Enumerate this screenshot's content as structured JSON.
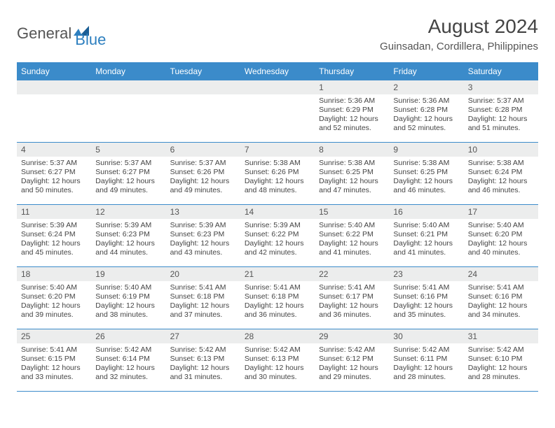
{
  "logo": {
    "text1": "General",
    "text2": "Blue"
  },
  "title": "August 2024",
  "subtitle": "Guinsadan, Cordillera, Philippines",
  "colors": {
    "header_bg": "#3b8bca",
    "header_text": "#ffffff",
    "daynum_bg": "#eceded",
    "body_text": "#444444",
    "rule": "#3b8bca",
    "logo_gray": "#555555",
    "logo_blue": "#2d7fbf"
  },
  "day_headers": [
    "Sunday",
    "Monday",
    "Tuesday",
    "Wednesday",
    "Thursday",
    "Friday",
    "Saturday"
  ],
  "weeks": [
    [
      {
        "n": "",
        "sunrise": "",
        "sunset": "",
        "daylight": ""
      },
      {
        "n": "",
        "sunrise": "",
        "sunset": "",
        "daylight": ""
      },
      {
        "n": "",
        "sunrise": "",
        "sunset": "",
        "daylight": ""
      },
      {
        "n": "",
        "sunrise": "",
        "sunset": "",
        "daylight": ""
      },
      {
        "n": "1",
        "sunrise": "Sunrise: 5:36 AM",
        "sunset": "Sunset: 6:29 PM",
        "daylight": "Daylight: 12 hours and 52 minutes."
      },
      {
        "n": "2",
        "sunrise": "Sunrise: 5:36 AM",
        "sunset": "Sunset: 6:28 PM",
        "daylight": "Daylight: 12 hours and 52 minutes."
      },
      {
        "n": "3",
        "sunrise": "Sunrise: 5:37 AM",
        "sunset": "Sunset: 6:28 PM",
        "daylight": "Daylight: 12 hours and 51 minutes."
      }
    ],
    [
      {
        "n": "4",
        "sunrise": "Sunrise: 5:37 AM",
        "sunset": "Sunset: 6:27 PM",
        "daylight": "Daylight: 12 hours and 50 minutes."
      },
      {
        "n": "5",
        "sunrise": "Sunrise: 5:37 AM",
        "sunset": "Sunset: 6:27 PM",
        "daylight": "Daylight: 12 hours and 49 minutes."
      },
      {
        "n": "6",
        "sunrise": "Sunrise: 5:37 AM",
        "sunset": "Sunset: 6:26 PM",
        "daylight": "Daylight: 12 hours and 49 minutes."
      },
      {
        "n": "7",
        "sunrise": "Sunrise: 5:38 AM",
        "sunset": "Sunset: 6:26 PM",
        "daylight": "Daylight: 12 hours and 48 minutes."
      },
      {
        "n": "8",
        "sunrise": "Sunrise: 5:38 AM",
        "sunset": "Sunset: 6:25 PM",
        "daylight": "Daylight: 12 hours and 47 minutes."
      },
      {
        "n": "9",
        "sunrise": "Sunrise: 5:38 AM",
        "sunset": "Sunset: 6:25 PM",
        "daylight": "Daylight: 12 hours and 46 minutes."
      },
      {
        "n": "10",
        "sunrise": "Sunrise: 5:38 AM",
        "sunset": "Sunset: 6:24 PM",
        "daylight": "Daylight: 12 hours and 46 minutes."
      }
    ],
    [
      {
        "n": "11",
        "sunrise": "Sunrise: 5:39 AM",
        "sunset": "Sunset: 6:24 PM",
        "daylight": "Daylight: 12 hours and 45 minutes."
      },
      {
        "n": "12",
        "sunrise": "Sunrise: 5:39 AM",
        "sunset": "Sunset: 6:23 PM",
        "daylight": "Daylight: 12 hours and 44 minutes."
      },
      {
        "n": "13",
        "sunrise": "Sunrise: 5:39 AM",
        "sunset": "Sunset: 6:23 PM",
        "daylight": "Daylight: 12 hours and 43 minutes."
      },
      {
        "n": "14",
        "sunrise": "Sunrise: 5:39 AM",
        "sunset": "Sunset: 6:22 PM",
        "daylight": "Daylight: 12 hours and 42 minutes."
      },
      {
        "n": "15",
        "sunrise": "Sunrise: 5:40 AM",
        "sunset": "Sunset: 6:22 PM",
        "daylight": "Daylight: 12 hours and 41 minutes."
      },
      {
        "n": "16",
        "sunrise": "Sunrise: 5:40 AM",
        "sunset": "Sunset: 6:21 PM",
        "daylight": "Daylight: 12 hours and 41 minutes."
      },
      {
        "n": "17",
        "sunrise": "Sunrise: 5:40 AM",
        "sunset": "Sunset: 6:20 PM",
        "daylight": "Daylight: 12 hours and 40 minutes."
      }
    ],
    [
      {
        "n": "18",
        "sunrise": "Sunrise: 5:40 AM",
        "sunset": "Sunset: 6:20 PM",
        "daylight": "Daylight: 12 hours and 39 minutes."
      },
      {
        "n": "19",
        "sunrise": "Sunrise: 5:40 AM",
        "sunset": "Sunset: 6:19 PM",
        "daylight": "Daylight: 12 hours and 38 minutes."
      },
      {
        "n": "20",
        "sunrise": "Sunrise: 5:41 AM",
        "sunset": "Sunset: 6:18 PM",
        "daylight": "Daylight: 12 hours and 37 minutes."
      },
      {
        "n": "21",
        "sunrise": "Sunrise: 5:41 AM",
        "sunset": "Sunset: 6:18 PM",
        "daylight": "Daylight: 12 hours and 36 minutes."
      },
      {
        "n": "22",
        "sunrise": "Sunrise: 5:41 AM",
        "sunset": "Sunset: 6:17 PM",
        "daylight": "Daylight: 12 hours and 36 minutes."
      },
      {
        "n": "23",
        "sunrise": "Sunrise: 5:41 AM",
        "sunset": "Sunset: 6:16 PM",
        "daylight": "Daylight: 12 hours and 35 minutes."
      },
      {
        "n": "24",
        "sunrise": "Sunrise: 5:41 AM",
        "sunset": "Sunset: 6:16 PM",
        "daylight": "Daylight: 12 hours and 34 minutes."
      }
    ],
    [
      {
        "n": "25",
        "sunrise": "Sunrise: 5:41 AM",
        "sunset": "Sunset: 6:15 PM",
        "daylight": "Daylight: 12 hours and 33 minutes."
      },
      {
        "n": "26",
        "sunrise": "Sunrise: 5:42 AM",
        "sunset": "Sunset: 6:14 PM",
        "daylight": "Daylight: 12 hours and 32 minutes."
      },
      {
        "n": "27",
        "sunrise": "Sunrise: 5:42 AM",
        "sunset": "Sunset: 6:13 PM",
        "daylight": "Daylight: 12 hours and 31 minutes."
      },
      {
        "n": "28",
        "sunrise": "Sunrise: 5:42 AM",
        "sunset": "Sunset: 6:13 PM",
        "daylight": "Daylight: 12 hours and 30 minutes."
      },
      {
        "n": "29",
        "sunrise": "Sunrise: 5:42 AM",
        "sunset": "Sunset: 6:12 PM",
        "daylight": "Daylight: 12 hours and 29 minutes."
      },
      {
        "n": "30",
        "sunrise": "Sunrise: 5:42 AM",
        "sunset": "Sunset: 6:11 PM",
        "daylight": "Daylight: 12 hours and 28 minutes."
      },
      {
        "n": "31",
        "sunrise": "Sunrise: 5:42 AM",
        "sunset": "Sunset: 6:10 PM",
        "daylight": "Daylight: 12 hours and 28 minutes."
      }
    ]
  ]
}
